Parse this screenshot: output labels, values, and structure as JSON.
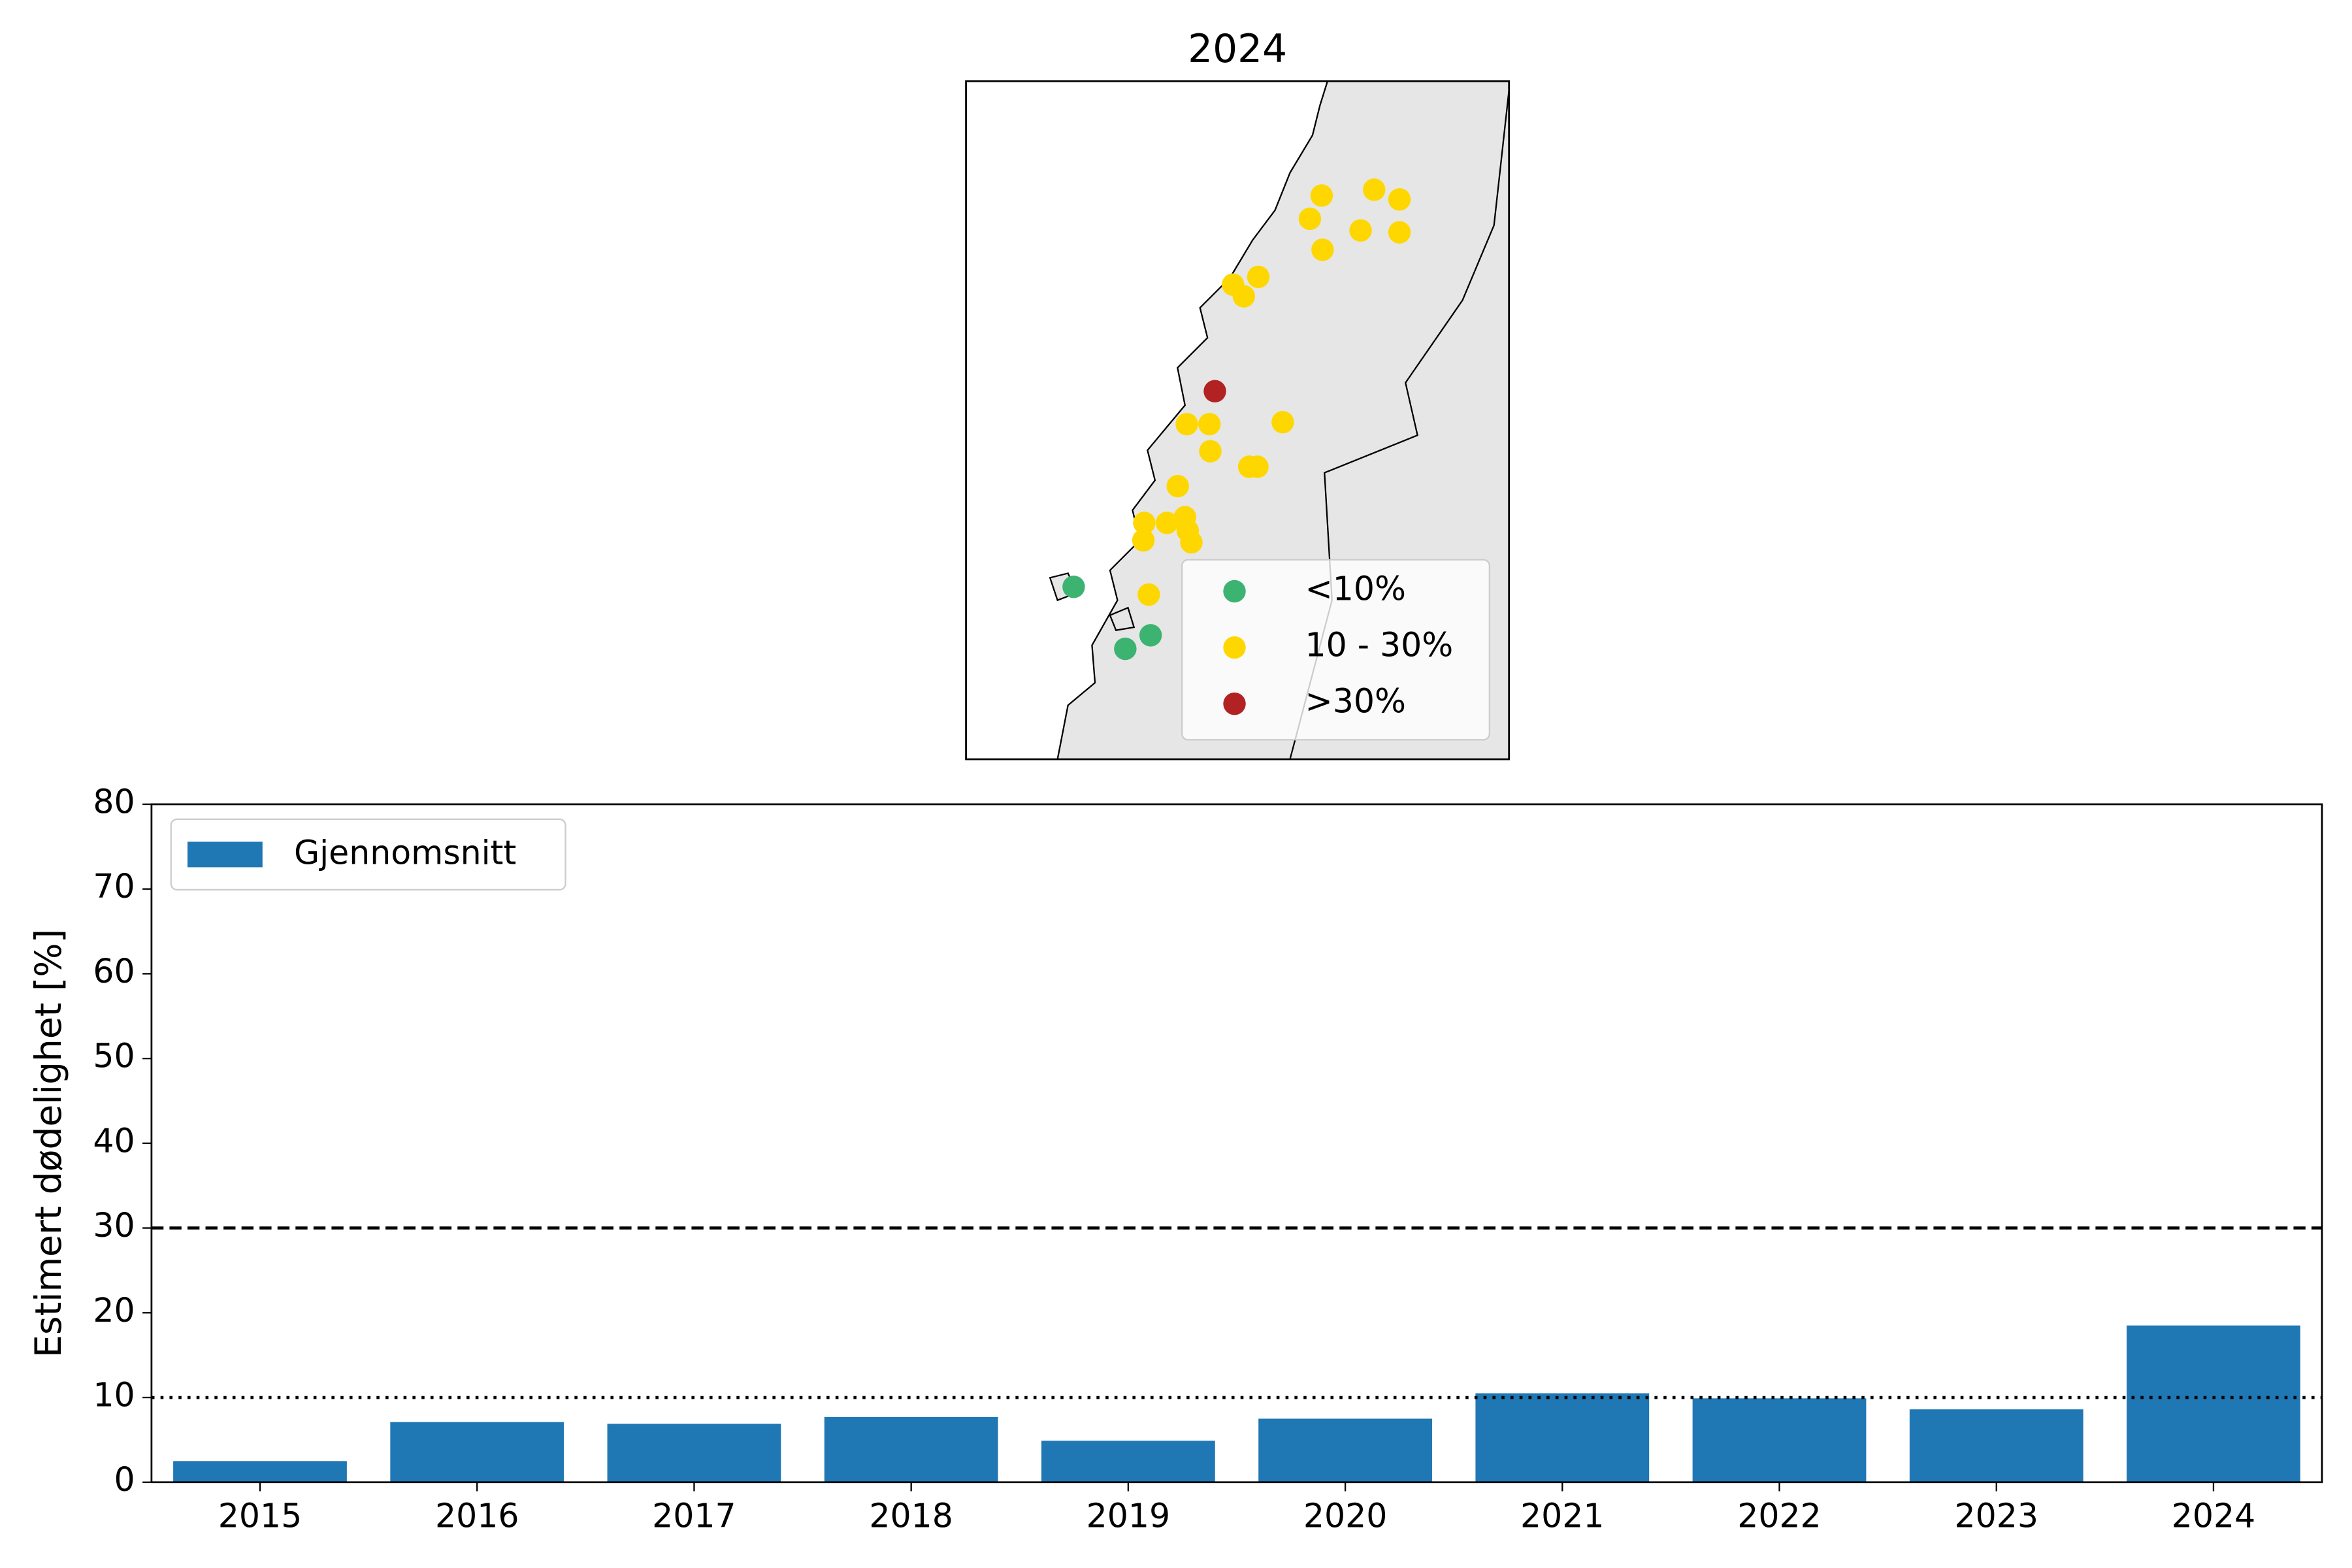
{
  "chart_data": [
    {
      "type": "scatter",
      "title": "2024",
      "xlim": [
        10.5,
        16.5
      ],
      "ylim": [
        64.5,
        68.0
      ],
      "legend": "lower right",
      "series": [
        {
          "name": "<10%",
          "color": "#3cb371",
          "x": [
            11.69,
            12.54,
            12.26
          ],
          "values": [
            65.39,
            65.14,
            65.07
          ]
        },
        {
          "name": "10 - 30%",
          "color": "#ffd700",
          "x": [
            14.43,
            15.01,
            15.29,
            14.3,
            14.86,
            15.29,
            14.44,
            13.45,
            13.73,
            13.57,
            12.94,
            13.19,
            13.2,
            14.0,
            13.63,
            13.72,
            12.84,
            12.47,
            12.72,
            12.92,
            12.95,
            12.46,
            12.99,
            12.52
          ],
          "values": [
            67.41,
            67.44,
            67.39,
            67.29,
            67.23,
            67.22,
            67.13,
            66.95,
            66.99,
            66.89,
            66.23,
            66.23,
            66.09,
            66.24,
            66.01,
            66.01,
            65.91,
            65.72,
            65.72,
            65.75,
            65.68,
            65.63,
            65.62,
            65.35
          ]
        },
        {
          "name": ">30%",
          "color": "#b22222",
          "x": [
            13.25
          ],
          "values": [
            66.4
          ]
        }
      ]
    },
    {
      "type": "bar",
      "ylabel": "Estimert dødelighet [%]",
      "categories": [
        "2015",
        "2016",
        "2017",
        "2018",
        "2019",
        "2020",
        "2021",
        "2022",
        "2023",
        "2024"
      ],
      "series": [
        {
          "name": "Gjennomsnitt",
          "color": "#1f77b4",
          "values": [
            2.5,
            7.1,
            6.9,
            7.7,
            4.9,
            7.5,
            10.5,
            9.9,
            8.6,
            18.5
          ]
        }
      ],
      "ylim": [
        0,
        80
      ],
      "yticks": [
        0,
        10,
        20,
        30,
        40,
        50,
        60,
        70,
        80
      ],
      "hlines": [
        {
          "value": 30,
          "style": "dashed"
        },
        {
          "value": 10,
          "style": "dotted"
        }
      ],
      "legend": "upper left"
    }
  ]
}
